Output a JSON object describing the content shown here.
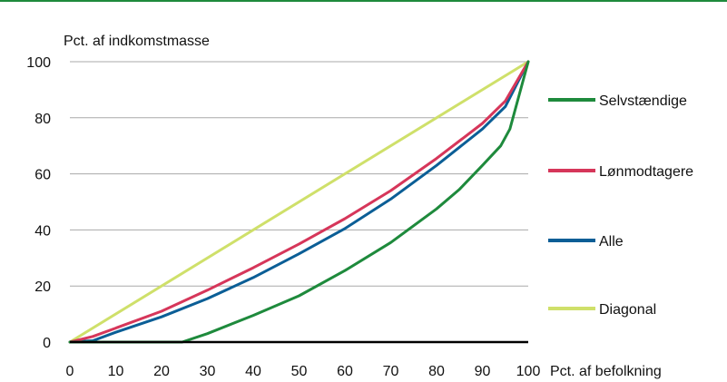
{
  "chart_data": {
    "type": "line",
    "ylabel": "Pct. af indkomstmasse",
    "xlabel": "Pct. af befolkning",
    "xlim": [
      0,
      100
    ],
    "ylim": [
      0,
      100
    ],
    "x_ticks": [
      "0",
      "10",
      "20",
      "30",
      "40",
      "50",
      "60",
      "70",
      "80",
      "90",
      "100"
    ],
    "y_ticks": [
      "0",
      "20",
      "40",
      "60",
      "80",
      "100"
    ],
    "grid": "horizontal",
    "legend_position": "right",
    "series": [
      {
        "name": "Selvstændige",
        "color": "#1e8a3c",
        "x": [
          0,
          24.5,
          30,
          40,
          50,
          60,
          70,
          80,
          85,
          90,
          94,
          96,
          98,
          100
        ],
        "y": [
          0,
          0,
          3,
          9.5,
          16.5,
          25.5,
          35.5,
          47.5,
          54.5,
          63,
          70,
          76,
          88,
          100
        ]
      },
      {
        "name": "Lønmodtagere",
        "color": "#d6365a",
        "x": [
          0,
          5,
          10,
          20,
          30,
          40,
          50,
          60,
          70,
          80,
          90,
          95,
          100
        ],
        "y": [
          0,
          2,
          5,
          11,
          18.5,
          26.5,
          35,
          44,
          54,
          65.5,
          78,
          86,
          100
        ]
      },
      {
        "name": "Alle",
        "color": "#0b5e96",
        "x": [
          0,
          5,
          10,
          20,
          30,
          40,
          50,
          60,
          70,
          80,
          90,
          95,
          100
        ],
        "y": [
          0,
          0.5,
          3.5,
          9,
          15.5,
          23,
          31.5,
          40.5,
          51,
          63,
          76,
          84,
          100
        ]
      },
      {
        "name": "Diagonal",
        "color": "#cfe06a",
        "x": [
          0,
          100
        ],
        "y": [
          0,
          100
        ]
      }
    ]
  }
}
